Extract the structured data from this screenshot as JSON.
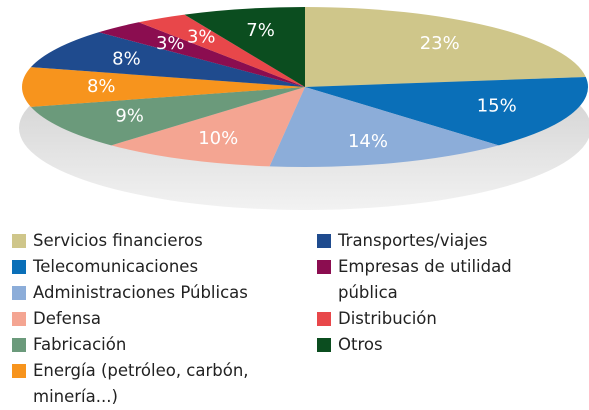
{
  "chart_data": {
    "type": "pie",
    "categories": [
      "Servicios financieros",
      "Telecomunicaciones",
      "Administraciones Públicas",
      "Defensa",
      "Fabricación",
      "Energía (petróleo, carbón, minería...)",
      "Transportes/viajes",
      "Empresas de utilidad pública",
      "Distribución",
      "Otros"
    ],
    "values": [
      23,
      15,
      14,
      10,
      9,
      8,
      8,
      3,
      3,
      7
    ],
    "value_labels": [
      "23%",
      "15%",
      "14%",
      "10%",
      "9%",
      "8%",
      "8%",
      "3%",
      "3%",
      "7%"
    ],
    "colors": [
      "#cfc68a",
      "#0a6fb8",
      "#8cadd9",
      "#f4a592",
      "#6b9a7b",
      "#f7941d",
      "#1f4b8e",
      "#8b0d50",
      "#e8474a",
      "#0b4d1f"
    ]
  }
}
